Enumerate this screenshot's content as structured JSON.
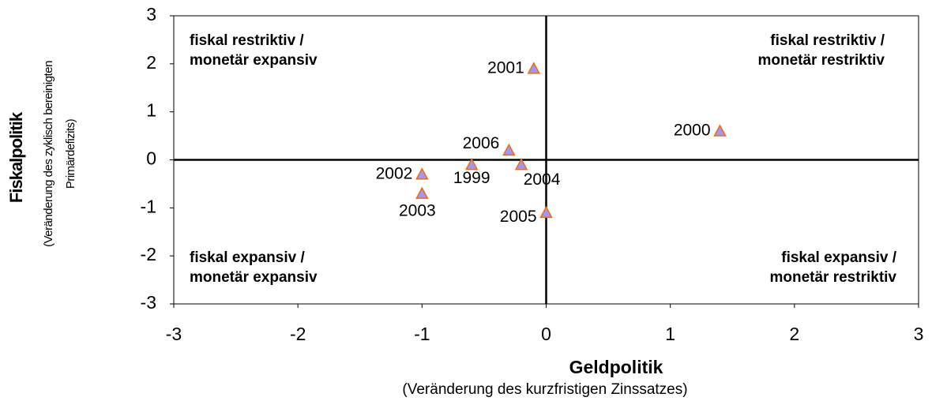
{
  "chart_data": {
    "type": "scatter",
    "xlabel": "Geldpolitik",
    "xsublabel": "(Veränderung des kurzfristigen Zinssatzes)",
    "ylabel": "Fiskalpolitik",
    "ysublabel": [
      "(Veränderung des zyklisch bereinigten",
      "Primärdefizits)"
    ],
    "series": [
      {
        "color": "#9999ff",
        "stroke": "#ff6600",
        "labels": [
          "2001",
          "2000",
          "2006",
          "1999",
          "2004",
          "2002",
          "2003",
          "2005"
        ],
        "x": [
          -0.1,
          1.4,
          -0.3,
          -0.6,
          -0.2,
          -1.0,
          -1.0,
          0.0
        ],
        "values": [
          1.9,
          0.6,
          0.2,
          -0.1,
          -0.1,
          -0.3,
          -0.7,
          -1.1
        ]
      }
    ],
    "annotations": [
      {
        "lines": [
          "fiskal restriktiv /",
          "monetär expansiv"
        ]
      },
      {
        "lines": [
          "fiskal restriktiv /",
          "monetär restriktiv"
        ]
      },
      {
        "lines": [
          "fiskal expansiv /",
          "monetär expansiv"
        ]
      },
      {
        "lines": [
          "fiskal expansiv /",
          "monetär restriktiv"
        ]
      }
    ],
    "xlim": [
      -3,
      3
    ],
    "xticks": [
      -3,
      -2,
      -1,
      0,
      1,
      2,
      3
    ],
    "ylim": [
      -3,
      3
    ],
    "yticks": [
      -3,
      -2,
      -1,
      0,
      1,
      2,
      3
    ]
  }
}
